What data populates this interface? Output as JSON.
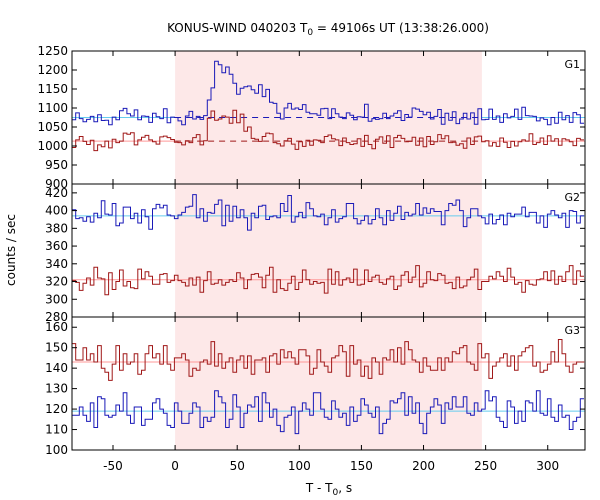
{
  "chart_data": {
    "type": "line",
    "title": {
      "main": "KONUS-WIND 040203 T",
      "sub": "0",
      "rest": " = 49106s UT (13:38:26.000)"
    },
    "xlabel": {
      "main": "T - T",
      "sub": "0",
      "rest": ", s"
    },
    "ylabel": "counts / sec",
    "xlim": [
      -83,
      330
    ],
    "xticks": [
      -50,
      0,
      50,
      100,
      150,
      200,
      250,
      300
    ],
    "highlight_interval": [
      0,
      247
    ],
    "bin_width": 2.944,
    "colors": {
      "blue": "#1a1ab8",
      "red": "#a01818",
      "cyan": "#66ccee",
      "pink": "#ff9999",
      "highlight": "#fde8e8",
      "dashed": "#a01818"
    },
    "panels": [
      {
        "name": "G1",
        "ylim": [
          900,
          1250
        ],
        "yticks": [
          900,
          950,
          1000,
          1050,
          1100,
          1150,
          1200,
          1250
        ],
        "series": [
          {
            "color": "blue",
            "background_level": 1075,
            "background_style": "cyan solid outside interval, dashed inside",
            "values": [
              1069,
              1087,
              1072,
              1064,
              1070,
              1078,
              1064,
              1082,
              1067,
              1068,
              1056,
              1076,
              1069,
              1093,
              1099,
              1085,
              1079,
              1095,
              1069,
              1079,
              1078,
              1062,
              1086,
              1077,
              1072,
              1098,
              1061,
              1076,
              1075,
              1066,
              1056,
              1079,
              1091,
              1071,
              1078,
              1070,
              1080,
              1121,
              1153,
              1223,
              1214,
              1193,
              1208,
              1189,
              1165,
              1136,
              1152,
              1156,
              1158,
              1148,
              1139,
              1161,
              1130,
              1149,
              1115,
              1112,
              1086,
              1071,
              1100,
              1112,
              1097,
              1100,
              1096,
              1109,
              1089,
              1085,
              1085,
              1081,
              1098,
              1099,
              1072,
              1098,
              1085,
              1076,
              1072,
              1087,
              1081,
              1069,
              1077,
              1076,
              1110,
              1065,
              1072,
              1070,
              1072,
              1086,
              1072,
              1079,
              1086,
              1093,
              1067,
              1083,
              1076,
              1100,
              1097,
              1091,
              1082,
              1089,
              1071,
              1078,
              1096,
              1057,
              1086,
              1068,
              1090,
              1059,
              1071,
              1086,
              1071,
              1087,
              1057,
              1098,
              1069,
              1070,
              1097,
              1070,
              1079,
              1062,
              1085,
              1074,
              1078,
              1097,
              1070,
              1102,
              1080,
              1079,
              1078,
              1066,
              1074,
              1070,
              1056,
              1075,
              1060,
              1089,
              1069,
              1080,
              1062,
              1088,
              1082,
              1060
            ]
          },
          {
            "color": "red",
            "background_level": 1013,
            "background_style": "pink solid outside interval, dashed inside",
            "values": [
              996,
              1016,
              1025,
              1012,
              1004,
              1015,
              988,
              1003,
              998,
              1013,
              995,
              1018,
              1009,
              1013,
              1034,
              1031,
              1035,
              1003,
              1016,
              1023,
              1028,
              1016,
              1011,
              1005,
              1024,
              1026,
              1022,
              1017,
              1010,
              1009,
              1003,
              1014,
              1009,
              1022,
              1030,
              1003,
              1014,
              1073,
              1092,
              1068,
              1071,
              1079,
              1076,
              1060,
              1094,
              1061,
              1084,
              1039,
              1050,
              1020,
              1018,
              1012,
              1025,
              1034,
              1032,
              1009,
              1006,
              1000,
              1014,
              1020,
              1005,
              991,
              1011,
              999,
              1015,
              1002,
              1016,
              1015,
              1009,
              1025,
              1029,
              1019,
              1016,
              1001,
              1021,
              1009,
              1004,
              1006,
              1019,
              999,
              1028,
              1004,
              993,
              1018,
              1024,
              1007,
              1027,
              996,
              1022,
              1028,
              1020,
              1011,
              1012,
              1023,
              1002,
              1021,
              998,
              1025,
              1004,
              1011,
              1030,
              1019,
              1027,
              1009,
              1010,
              1002,
              1006,
              994,
              1021,
              1004,
              1024,
              1026,
              1011,
              1014,
              1000,
              1009,
              999,
              1021,
              1010,
              996,
              1012,
              1000,
              1011,
              1016,
              1013,
              1032,
              1004,
              1009,
              1021,
              1004,
              1027,
              1013,
              1019,
              1002,
              1019,
              1016,
              1011,
              1001,
              1020,
              1016
            ]
          }
        ]
      },
      {
        "name": "G2",
        "ylim": [
          280,
          430
        ],
        "yticks": [
          280,
          300,
          320,
          340,
          360,
          380,
          400,
          420
        ],
        "series": [
          {
            "color": "blue",
            "background_level": 394,
            "values": [
              401,
              391,
              392,
              388,
              393,
              387,
              397,
              392,
              411,
              396,
              395,
              408,
              383,
              386,
              404,
              404,
              391,
              397,
              386,
              401,
              393,
              379,
              402,
              407,
              403,
              406,
              395,
              394,
              391,
              395,
              398,
              404,
              405,
              418,
              392,
              402,
              388,
              398,
              397,
              407,
              412,
              383,
              406,
              388,
              405,
              392,
              401,
              392,
              378,
              397,
              392,
              405,
              406,
              390,
              393,
              394,
              392,
              408,
              399,
              417,
              387,
              393,
              398,
              392,
              409,
              402,
              394,
              393,
              396,
              384,
              392,
              401,
              387,
              391,
              393,
              408,
              408,
              391,
              385,
              389,
              394,
              385,
              390,
              402,
              392,
              384,
              400,
              389,
              397,
              405,
              390,
              398,
              394,
              396,
              408,
              395,
              403,
              397,
              402,
              399,
              399,
              384,
              400,
              408,
              406,
              412,
              400,
              382,
              392,
              402,
              402,
              394,
              392,
              385,
              396,
              385,
              390,
              395,
              384,
              397,
              393,
              396,
              396,
              404,
              393,
              398,
              398,
              386,
              394,
              381,
              396,
              400,
              395,
              392,
              397,
              381,
              400,
              399,
              386,
              394
            ]
          },
          {
            "color": "red",
            "background_level": 322,
            "values": [
              321,
              319,
              310,
              318,
              324,
              316,
              336,
              324,
              323,
              305,
              330,
              311,
              320,
              333,
              315,
              320,
              313,
              312,
              334,
              323,
              331,
              326,
              317,
              317,
              328,
              329,
              319,
              321,
              327,
              321,
              319,
              315,
              324,
              316,
              325,
              308,
              321,
              331,
              317,
              318,
              322,
              316,
              319,
              322,
              320,
              330,
              324,
              312,
              322,
              328,
              329,
              325,
              313,
              327,
              336,
              308,
              322,
              312,
              310,
              318,
              326,
              311,
              319,
              333,
              322,
              317,
              320,
              318,
              319,
              307,
              334,
              317,
              331,
              316,
              322,
              324,
              319,
              334,
              316,
              317,
              333,
              320,
              325,
              327,
              319,
              317,
              323,
              326,
              311,
              315,
              327,
              331,
              319,
              325,
              338,
              314,
              318,
              331,
              322,
              321,
              329,
              327,
              318,
              319,
              312,
              325,
              313,
              315,
              322,
              325,
              334,
              311,
              320,
              320,
              326,
              323,
              331,
              326,
              320,
              335,
              325,
              317,
              319,
              308,
              321,
              317,
              316,
              322,
              323,
              331,
              321,
              332,
              317,
              326,
              320,
              331,
              338,
              317,
              332,
              326
            ]
          }
        ]
      },
      {
        "name": "G3",
        "ylim": [
          100,
          165
        ],
        "yticks": [
          100,
          110,
          120,
          130,
          140,
          150,
          160
        ],
        "series": [
          {
            "color": "blue",
            "background_level": 119,
            "values": [
              117,
              117,
              121,
              117,
              114,
              123,
              111,
              126,
              125,
              117,
              116,
              117,
              122,
              119,
              128,
              117,
              113,
              121,
              121,
              112,
              115,
              115,
              123,
              125,
              120,
              118,
              112,
              111,
              123,
              119,
              113,
              113,
              118,
              123,
              121,
              111,
              116,
              114,
              116,
              129,
              126,
              123,
              111,
              115,
              127,
              121,
              111,
              118,
              122,
              121,
              126,
              114,
              128,
              123,
              116,
              120,
              112,
              109,
              116,
              117,
              121,
              108,
              119,
              123,
              120,
              117,
              128,
              128,
              120,
              116,
              115,
              124,
              120,
              116,
              118,
              112,
              121,
              114,
              117,
              125,
              122,
              118,
              116,
              121,
              108,
              113,
              115,
              124,
              123,
              125,
              128,
              117,
              126,
              118,
              123,
              113,
              108,
              118,
              121,
              125,
              122,
              113,
              123,
              120,
              126,
              121,
              121,
              126,
              118,
              117,
              123,
              119,
              120,
              129,
              124,
              126,
              116,
              114,
              111,
              124,
              121,
              113,
              119,
              114,
              124,
              123,
              119,
              129,
              118,
              117,
              125,
              116,
              114,
              122,
              116,
              117,
              110,
              114,
              116,
              125
            ]
          },
          {
            "color": "red",
            "background_level": 143,
            "values": [
              152,
              144,
              144,
              150,
              144,
              147,
              143,
              151,
              140,
              138,
              134,
              142,
              151,
              139,
              147,
              142,
              143,
              147,
              137,
              139,
              147,
              151,
              145,
              147,
              142,
              151,
              142,
              139,
              145,
              145,
              147,
              144,
              136,
              140,
              139,
              143,
              144,
              142,
              153,
              141,
              147,
              140,
              143,
              145,
              138,
              144,
              146,
              140,
              146,
              137,
              144,
              144,
              145,
              138,
              146,
              147,
              142,
              149,
              145,
              148,
              145,
              142,
              149,
              149,
              146,
              137,
              140,
              149,
              143,
              141,
              138,
              145,
              146,
              151,
              148,
              136,
              151,
              142,
              144,
              136,
              141,
              135,
              145,
              143,
              137,
              145,
              144,
              149,
              143,
              150,
              142,
              153,
              149,
              144,
              143,
              138,
              145,
              141,
              139,
              139,
              145,
              139,
              145,
              143,
              148,
              147,
              150,
              151,
              143,
              142,
              139,
              152,
              145,
              147,
              135,
              141,
              143,
              145,
              147,
              141,
              146,
              139,
              146,
              148,
              150,
              151,
              141,
              143,
              138,
              139,
              142,
              148,
              143,
              154,
              147,
              141,
              138,
              142,
              143,
              143
            ]
          }
        ]
      }
    ]
  }
}
